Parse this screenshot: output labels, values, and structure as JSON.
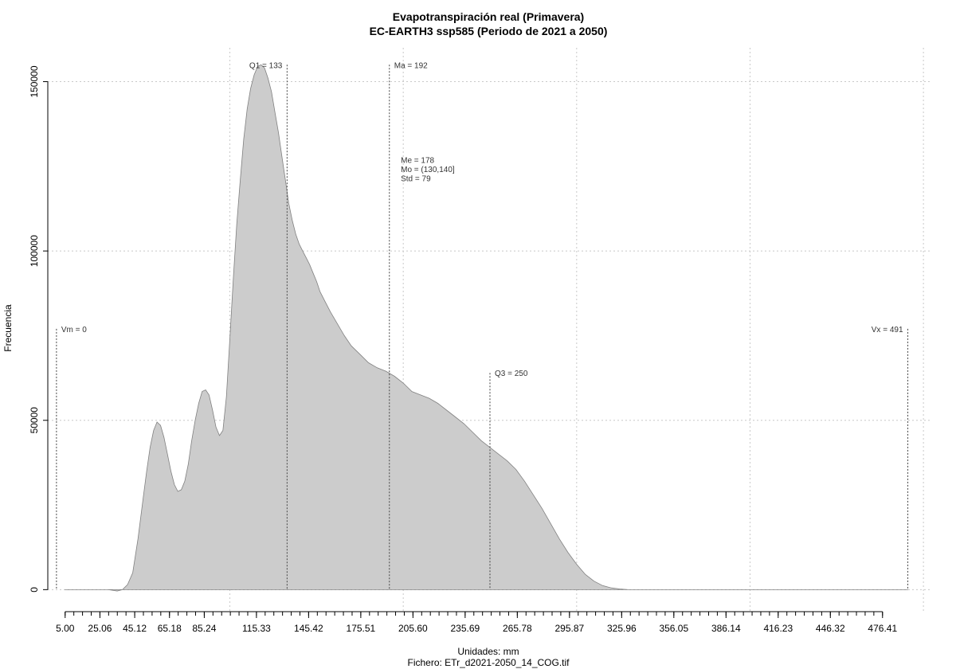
{
  "chart_data": {
    "type": "area",
    "title": "Evapotranspiración real (Primavera)",
    "subtitle": "EC-EARTH3 ssp585 (Periodo de 2021 a 2050)",
    "xlabel": "Unidades: mm",
    "ylabel": "Frecuencia",
    "caption": "Fichero: ETr_d2021-2050_14_COG.tif",
    "xlim": [
      -5,
      505
    ],
    "ylim": [
      -6500,
      160000
    ],
    "x_ticks": [
      5.0,
      10.01,
      15.03,
      20.04,
      25.06,
      30.07,
      35.09,
      40.1,
      45.12,
      50.13,
      55.15,
      60.16,
      65.18,
      70.19,
      75.21,
      80.22,
      85.24,
      90.25,
      95.27,
      100.28,
      105.3,
      110.31,
      115.33,
      120.35,
      125.36,
      130.38,
      135.39,
      140.41,
      145.42,
      150.44,
      155.45,
      160.47,
      165.48,
      170.5,
      175.51,
      180.53,
      185.54,
      190.56,
      195.57,
      200.59,
      205.6,
      210.62,
      215.63,
      220.65,
      225.66,
      230.68,
      235.69,
      240.71,
      245.72,
      250.74,
      255.75,
      260.77,
      265.78,
      270.8,
      275.81,
      280.83,
      285.84,
      290.86,
      295.87,
      300.89,
      305.9,
      310.92,
      315.93,
      320.95,
      325.96,
      330.98,
      335.99,
      341.01,
      346.02,
      351.04,
      356.05,
      361.07,
      366.08,
      371.1,
      376.11,
      381.13,
      386.14,
      391.16,
      396.17,
      401.19,
      406.2,
      411.22,
      416.23,
      421.25,
      426.26,
      431.28,
      436.29,
      441.31,
      446.32,
      451.34,
      456.35,
      461.37,
      466.38,
      471.4,
      476.41
    ],
    "x_tick_labels": [
      "5.00",
      "25.06",
      "45.12",
      "65.18",
      "85.24",
      "115.33",
      "145.42",
      "175.51",
      "205.60",
      "235.69",
      "265.78",
      "295.87",
      "325.96",
      "356.05",
      "386.14",
      "416.23",
      "446.32",
      "476.41"
    ],
    "x_tick_label_values": [
      5.0,
      25.06,
      45.12,
      65.18,
      85.24,
      115.33,
      145.42,
      175.51,
      205.6,
      235.69,
      265.78,
      295.87,
      325.96,
      356.05,
      386.14,
      416.23,
      446.32,
      476.41
    ],
    "y_ticks": [
      0,
      50000,
      100000,
      150000
    ],
    "y_tick_labels": [
      "0",
      "50000",
      "100000",
      "150000"
    ],
    "grid": true,
    "grid_x": [
      100,
      200,
      300,
      400,
      500
    ],
    "fill_color": "#cccccc",
    "line_color": "#808080",
    "series": [
      {
        "x": [
          5,
          20,
          30,
          35,
          38,
          41,
          44,
          47,
          50,
          52,
          54,
          56,
          58,
          60,
          62,
          64,
          66,
          68,
          70,
          72,
          74,
          76,
          78,
          80,
          82,
          84,
          86,
          88,
          90,
          92,
          94,
          96,
          98,
          100,
          102,
          104,
          106,
          108,
          110,
          112,
          114,
          116,
          118,
          120,
          122,
          124,
          126,
          128,
          130,
          132,
          134,
          136,
          138,
          140,
          142,
          144,
          146,
          148,
          150,
          152,
          155,
          158,
          162,
          166,
          170,
          175,
          180,
          185,
          190,
          195,
          200,
          205,
          210,
          215,
          220,
          225,
          230,
          235,
          240,
          245,
          250,
          255,
          260,
          265,
          270,
          275,
          280,
          285,
          290,
          295,
          300,
          305,
          310,
          315,
          320,
          325,
          330,
          335,
          340,
          345,
          350,
          355,
          360,
          365,
          370,
          375,
          380,
          385,
          390,
          395,
          400,
          405,
          410,
          420,
          430,
          440,
          460,
          480,
          491
        ],
        "y": [
          0,
          0,
          0,
          -400,
          0,
          1500,
          5000,
          15000,
          27000,
          35000,
          42000,
          47000,
          49500,
          48500,
          45000,
          40000,
          35000,
          31000,
          29000,
          29500,
          32000,
          37000,
          44000,
          50000,
          55000,
          58500,
          59000,
          57500,
          53000,
          48000,
          45500,
          47000,
          57000,
          74000,
          92000,
          108000,
          121000,
          133000,
          142000,
          148000,
          152000,
          154500,
          155000,
          154000,
          151000,
          147000,
          141000,
          135000,
          128000,
          121000,
          114000,
          109000,
          105000,
          102000,
          100000,
          98000,
          96000,
          93500,
          91000,
          88000,
          85000,
          82000,
          78500,
          75000,
          72000,
          69500,
          67000,
          65500,
          64500,
          63000,
          61000,
          58500,
          57500,
          56500,
          55000,
          53000,
          51000,
          49000,
          46500,
          44000,
          42000,
          40000,
          38000,
          35500,
          32000,
          28000,
          24000,
          19500,
          15000,
          11000,
          7500,
          4500,
          2500,
          1200,
          500,
          200,
          0,
          0,
          0,
          0,
          0,
          0,
          0,
          0,
          0,
          0,
          0,
          0,
          0,
          0,
          0,
          0,
          0,
          0,
          0,
          0,
          0,
          0,
          0
        ]
      }
    ],
    "annotations": [
      {
        "label": "Vm = 0",
        "x": 0,
        "y_top": 77000,
        "align": "right-of-line"
      },
      {
        "label": "Q1 = 133",
        "x": 133,
        "y_top": 155000,
        "align": "left-of-line"
      },
      {
        "label": "Ma = 192",
        "x": 192,
        "y_top": 155000,
        "align": "right-of-line"
      },
      {
        "label": "Q3 = 250",
        "x": 250,
        "y_top": 64000,
        "align": "right-of-line"
      },
      {
        "label": "Vx = 491",
        "x": 491,
        "y_top": 77000,
        "align": "left-of-line"
      }
    ],
    "stats_text": [
      "Me = 178",
      "Mo = (130,140]",
      "Std = 79"
    ],
    "stats_anchor": {
      "x": 194,
      "y": 126000
    }
  }
}
